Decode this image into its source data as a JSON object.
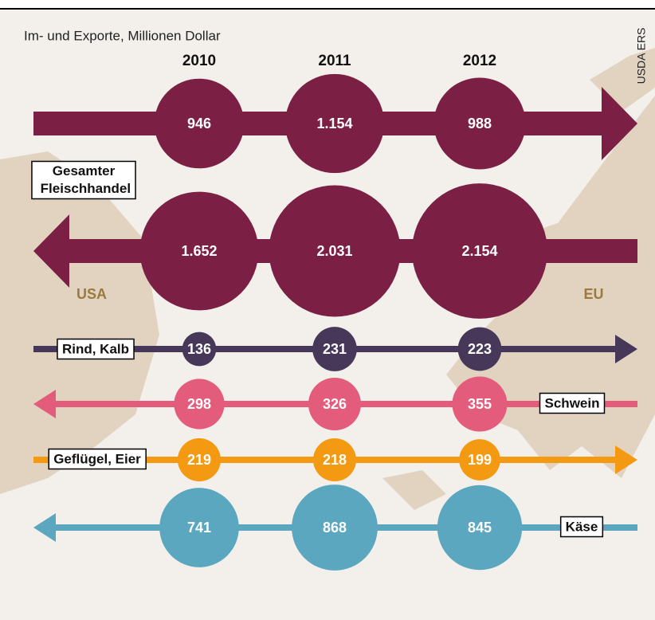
{
  "chart_data": {
    "type": "bubble-flow",
    "title": "Im- und Exporte, Millionen Dollar",
    "source": "USDA ERS",
    "left_label": "USA",
    "right_label": "EU",
    "categories": [
      "2010",
      "2011",
      "2012"
    ],
    "series": [
      {
        "name": "Gesamter Fleischhandel",
        "color": "#7b1f44",
        "direction": "right",
        "values": [
          946,
          1154,
          988
        ],
        "value_labels": [
          "946",
          "1.154",
          "988"
        ]
      },
      {
        "color": "#7b1f44",
        "direction": "left",
        "values": [
          1652,
          2031,
          2154
        ],
        "value_labels": [
          "1.652",
          "2.031",
          "2.154"
        ]
      },
      {
        "name": "Rind, Kalb",
        "color": "#47385a",
        "direction": "right",
        "values": [
          136,
          231,
          223
        ]
      },
      {
        "name": "Schwein",
        "color": "#e45c7b",
        "direction": "left",
        "values": [
          298,
          326,
          355
        ]
      },
      {
        "name": "Geflügel, Eier",
        "color": "#f39a12",
        "direction": "right",
        "values": [
          219,
          218,
          199
        ]
      },
      {
        "name": "Käse",
        "color": "#5aa7bf",
        "direction": "left",
        "values": [
          741,
          868,
          845
        ]
      }
    ]
  }
}
